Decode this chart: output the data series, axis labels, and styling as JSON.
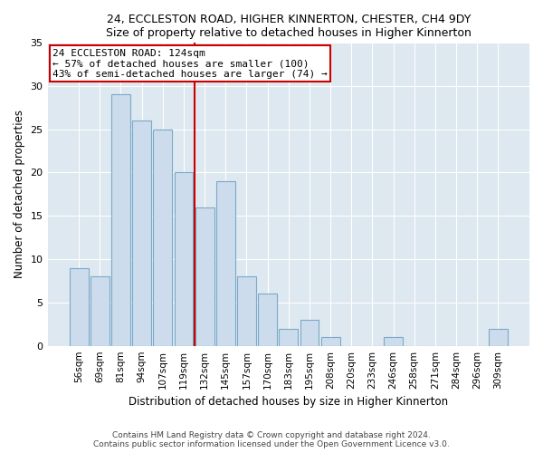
{
  "title": "24, ECCLESTON ROAD, HIGHER KINNERTON, CHESTER, CH4 9DY",
  "subtitle": "Size of property relative to detached houses in Higher Kinnerton",
  "xlabel": "Distribution of detached houses by size in Higher Kinnerton",
  "ylabel": "Number of detached properties",
  "categories": [
    "56sqm",
    "69sqm",
    "81sqm",
    "94sqm",
    "107sqm",
    "119sqm",
    "132sqm",
    "145sqm",
    "157sqm",
    "170sqm",
    "183sqm",
    "195sqm",
    "208sqm",
    "220sqm",
    "233sqm",
    "246sqm",
    "258sqm",
    "271sqm",
    "284sqm",
    "296sqm",
    "309sqm"
  ],
  "values": [
    9,
    8,
    29,
    26,
    25,
    20,
    16,
    19,
    8,
    6,
    2,
    3,
    1,
    0,
    0,
    1,
    0,
    0,
    0,
    0,
    2
  ],
  "bar_color": "#ccdcec",
  "bar_edgecolor": "#7aaac8",
  "vline_x": 5.5,
  "vline_color": "#cc0000",
  "annotation_text": "24 ECCLESTON ROAD: 124sqm\n← 57% of detached houses are smaller (100)\n43% of semi-detached houses are larger (74) →",
  "annotation_box_edgecolor": "#cc0000",
  "ylim": [
    0,
    35
  ],
  "yticks": [
    0,
    5,
    10,
    15,
    20,
    25,
    30,
    35
  ],
  "background_color": "#dde8f0",
  "footer_line1": "Contains HM Land Registry data © Crown copyright and database right 2024.",
  "footer_line2": "Contains public sector information licensed under the Open Government Licence v3.0."
}
